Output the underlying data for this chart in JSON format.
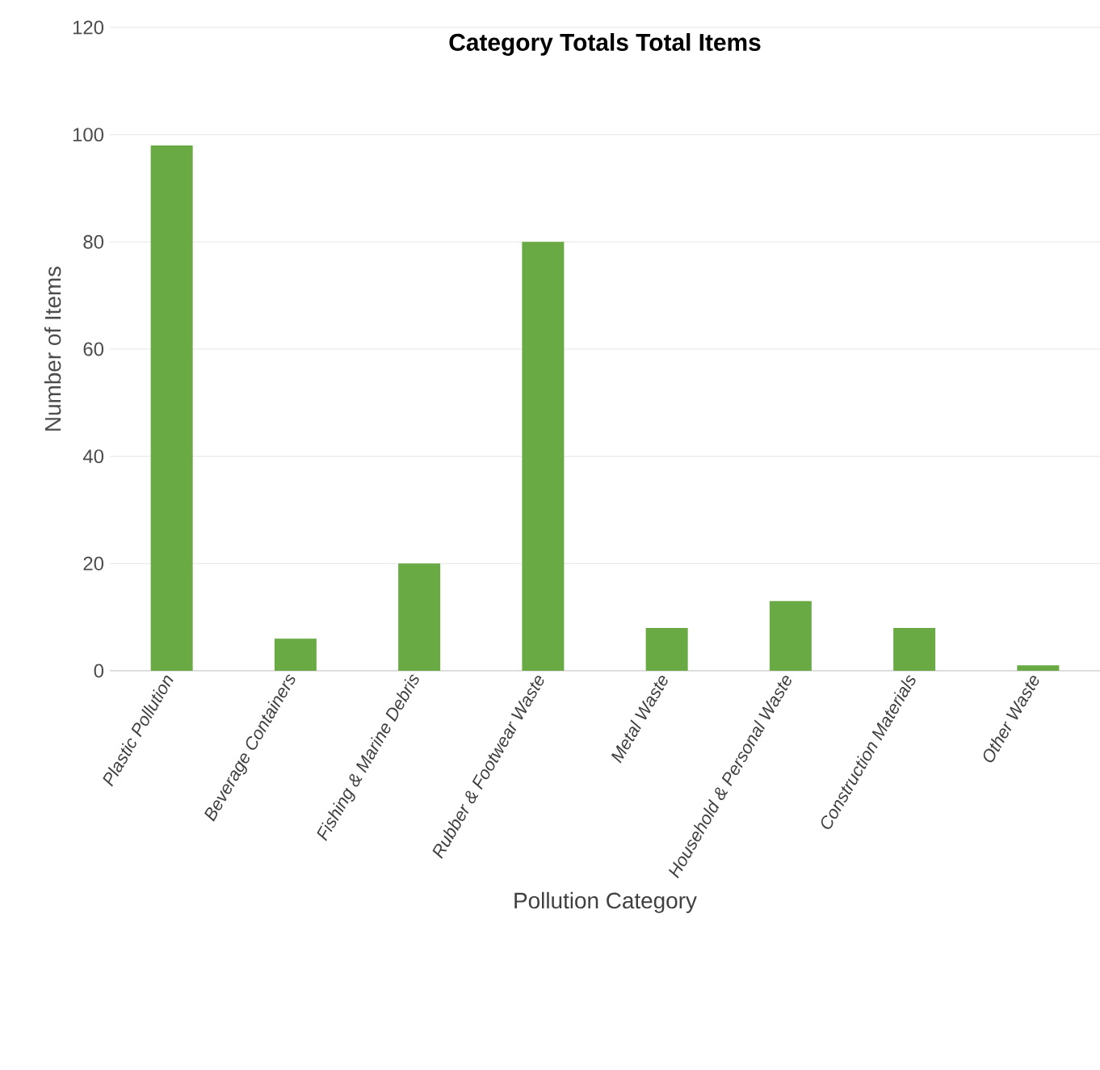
{
  "chart_data": {
    "type": "bar",
    "title": "Category Totals Total Items",
    "xlabel": "Pollution Category",
    "ylabel": "Number of Items",
    "categories": [
      "Plastic Pollution",
      "Beverage Containers",
      "Fishing & Marine Debris",
      "Rubber & Footwear Waste",
      "Metal Waste",
      "Household & Personal Waste",
      "Construction Materials",
      "Other Waste"
    ],
    "values": [
      98,
      6,
      20,
      80,
      8,
      13,
      8,
      1
    ],
    "color": "#6aaa45",
    "ylim": [
      0,
      120
    ],
    "yticks": [
      0,
      20,
      40,
      60,
      80,
      100,
      120
    ],
    "grid": "y"
  }
}
